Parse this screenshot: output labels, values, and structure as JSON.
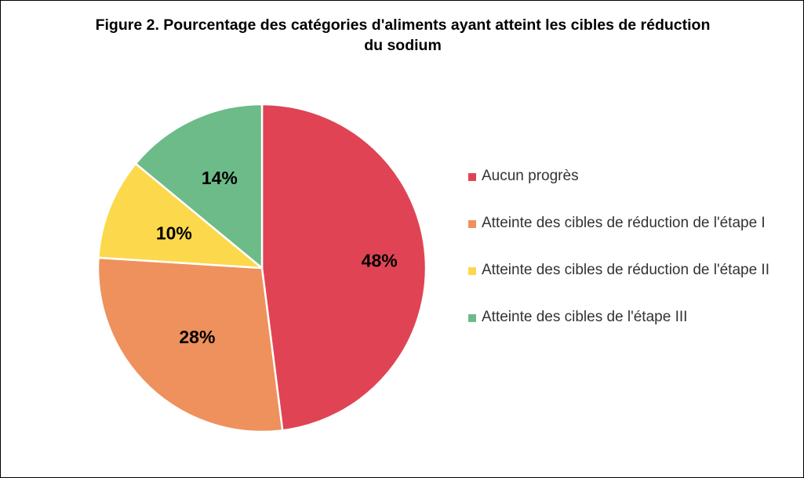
{
  "chart_data": {
    "type": "pie",
    "title_line1": "Figure 2. Pourcentage des catégories d'aliments ayant atteint les cibles de réduction",
    "title_line2": "du sodium",
    "categories": [
      "Aucun progrès",
      "Atteinte des cibles de réduction de l'étape I",
      "Atteinte des cibles de réduction de l'étape II",
      "Atteinte des cibles de l'étape III"
    ],
    "values": [
      48,
      28,
      10,
      14
    ],
    "labels": [
      "48%",
      "28%",
      "10%",
      "14%"
    ],
    "colors": [
      "#e04454",
      "#ee915c",
      "#fcd94c",
      "#6cbb89"
    ],
    "legend_position": "right"
  }
}
